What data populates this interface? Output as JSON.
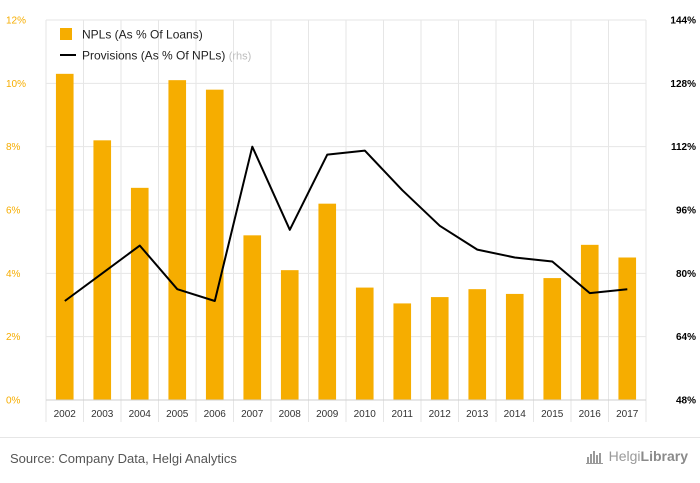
{
  "chart_data": {
    "type": "bar",
    "categories": [
      "2002",
      "2003",
      "2004",
      "2005",
      "2006",
      "2007",
      "2008",
      "2009",
      "2010",
      "2011",
      "2012",
      "2013",
      "2014",
      "2015",
      "2016",
      "2017"
    ],
    "series": [
      {
        "name": "NPLs (As % Of Loans)",
        "type": "bar",
        "axis": "left",
        "color": "#f6ad00",
        "values": [
          10.3,
          8.2,
          6.7,
          10.1,
          9.8,
          5.2,
          4.1,
          6.2,
          3.55,
          3.05,
          3.25,
          3.5,
          3.35,
          3.85,
          4.9,
          4.5
        ]
      },
      {
        "name": "Provisions (As % Of NPLs)",
        "name_suffix": "(rhs)",
        "type": "line",
        "axis": "right",
        "color": "#000000",
        "values": [
          73,
          80,
          87,
          76,
          73,
          112,
          91,
          110,
          111,
          101,
          92,
          86,
          84,
          83,
          75,
          76
        ]
      }
    ],
    "y_left": {
      "min": 0,
      "max": 12,
      "ticks": [
        "0%",
        "2%",
        "4%",
        "6%",
        "8%",
        "10%",
        "12%"
      ],
      "tick_values": [
        0,
        2,
        4,
        6,
        8,
        10,
        12
      ],
      "color": "#f6ad00"
    },
    "y_right": {
      "min": 48,
      "max": 144,
      "ticks": [
        "48%",
        "64%",
        "80%",
        "96%",
        "112%",
        "128%",
        "144%"
      ],
      "tick_values": [
        48,
        64,
        80,
        96,
        112,
        128,
        144
      ],
      "color": "#000000"
    },
    "grid": true,
    "legend_position": "top-left"
  },
  "footer": {
    "source": "Source: Company Data, Helgi Analytics",
    "brand_light": "Helgi",
    "brand_bold": "Library"
  },
  "icons": {
    "brand": "helgi-library-logo-icon"
  }
}
